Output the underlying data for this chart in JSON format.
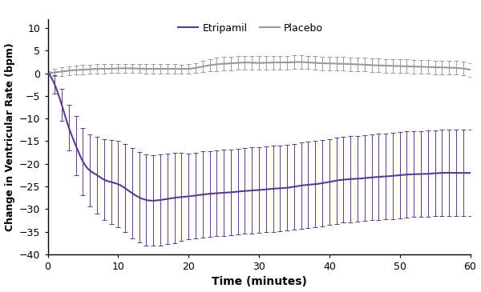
{
  "etripamil_x": [
    0,
    0.5,
    1,
    1.5,
    2,
    2.5,
    3,
    3.5,
    4,
    4.5,
    5,
    5.5,
    6,
    6.5,
    7,
    7.5,
    8,
    8.5,
    9,
    9.5,
    10,
    10.5,
    11,
    11.5,
    12,
    12.5,
    13,
    13.5,
    14,
    14.5,
    15,
    15.5,
    16,
    16.5,
    17,
    17.5,
    18,
    18.5,
    19,
    19.5,
    20,
    20.5,
    21,
    21.5,
    22,
    22.5,
    23,
    23.5,
    24,
    24.5,
    25,
    25.5,
    26,
    26.5,
    27,
    27.5,
    28,
    28.5,
    29,
    29.5,
    30,
    30.5,
    31,
    31.5,
    32,
    32.5,
    33,
    33.5,
    34,
    34.5,
    35,
    35.5,
    36,
    36.5,
    37,
    37.5,
    38,
    38.5,
    39,
    39.5,
    40,
    40.5,
    41,
    41.5,
    42,
    42.5,
    43,
    43.5,
    44,
    44.5,
    45,
    45.5,
    46,
    46.5,
    47,
    47.5,
    48,
    48.5,
    49,
    49.5,
    50,
    50.5,
    51,
    51.5,
    52,
    52.5,
    53,
    53.5,
    54,
    54.5,
    55,
    55.5,
    56,
    56.5,
    57,
    57.5,
    58,
    58.5,
    59,
    59.5,
    60
  ],
  "etripamil_key_x": [
    0,
    1,
    2,
    3,
    4,
    5,
    6,
    7,
    8,
    10,
    12,
    14,
    16,
    18,
    20,
    22,
    24,
    26,
    28,
    30,
    32,
    34,
    36,
    38,
    40,
    42,
    44,
    46,
    48,
    50,
    52,
    54,
    56,
    58,
    60
  ],
  "etripamil_key_y": [
    0,
    -2.5,
    -7,
    -12,
    -16,
    -19.5,
    -21.5,
    -22.5,
    -23.5,
    -24.5,
    -26.5,
    -28.0,
    -28.0,
    -27.5,
    -27.2,
    -26.8,
    -26.5,
    -26.3,
    -26.0,
    -25.8,
    -25.5,
    -25.3,
    -24.8,
    -24.5,
    -24.0,
    -23.5,
    -23.3,
    -23.0,
    -22.8,
    -22.5,
    -22.3,
    -22.2,
    -22.0,
    -22.0,
    -22.0
  ],
  "etripamil_err": [
    0,
    2.0,
    3.5,
    5.0,
    6.5,
    7.5,
    8.0,
    8.5,
    9.0,
    9.5,
    10.0,
    10.0,
    10.0,
    10.0,
    9.5,
    9.5,
    9.5,
    9.5,
    9.5,
    9.5,
    9.5,
    9.5,
    9.5,
    9.5,
    9.5,
    9.5,
    9.5,
    9.5,
    9.5,
    9.5,
    9.5,
    9.5,
    9.5,
    9.5,
    9.5
  ],
  "placebo_key_x": [
    0,
    1,
    2,
    3,
    4,
    5,
    6,
    7,
    8,
    10,
    12,
    14,
    16,
    18,
    20,
    22,
    24,
    26,
    28,
    30,
    32,
    34,
    36,
    38,
    40,
    42,
    44,
    46,
    48,
    50,
    52,
    54,
    56,
    58,
    60
  ],
  "placebo_key_y": [
    0,
    0.2,
    0.4,
    0.6,
    0.7,
    0.8,
    0.9,
    1.0,
    1.0,
    1.1,
    1.1,
    1.0,
    1.0,
    1.0,
    1.0,
    1.5,
    2.0,
    2.2,
    2.4,
    2.3,
    2.4,
    2.4,
    2.5,
    2.3,
    2.2,
    2.1,
    2.0,
    1.8,
    1.7,
    1.6,
    1.5,
    1.4,
    1.3,
    1.2,
    0.8
  ],
  "placebo_err": [
    0.5,
    0.8,
    1.0,
    1.0,
    1.0,
    1.0,
    1.0,
    1.0,
    1.0,
    1.0,
    1.0,
    1.0,
    1.0,
    1.0,
    1.0,
    1.2,
    1.5,
    1.5,
    1.5,
    1.5,
    1.5,
    1.5,
    1.5,
    1.5,
    1.5,
    1.5,
    1.5,
    1.5,
    1.5,
    1.5,
    1.5,
    1.5,
    1.5,
    1.5,
    1.5
  ],
  "etripamil_color": "#5B3A8E",
  "placebo_color": "#999999",
  "xlabel": "Time (minutes)",
  "ylabel": "Change in Ventricular Rate (bpm)",
  "ylim": [
    -40,
    12
  ],
  "xlim": [
    0,
    60
  ],
  "yticks": [
    -40,
    -35,
    -30,
    -25,
    -20,
    -15,
    -10,
    -5,
    0,
    5,
    10
  ],
  "xticks": [
    0,
    10,
    20,
    30,
    40,
    50,
    60
  ],
  "legend_etripamil": "Etripamil",
  "legend_placebo": "Placebo",
  "background_color": "#ffffff"
}
